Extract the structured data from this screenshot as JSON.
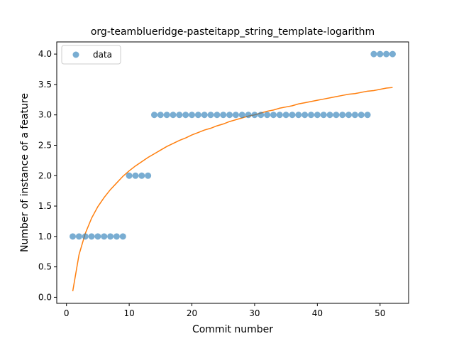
{
  "chart_data": {
    "type": "scatter",
    "title": "org-teamblueridge-pasteitapp_string_template-logarithm",
    "xlabel": "Commit number",
    "ylabel": "Number of instance of a feature",
    "xlim": [
      -1.55,
      54.55
    ],
    "ylim": [
      -0.1,
      4.2
    ],
    "xticks": [
      0,
      10,
      20,
      30,
      40,
      50
    ],
    "yticks": [
      0.0,
      0.5,
      1.0,
      1.5,
      2.0,
      2.5,
      3.0,
      3.5,
      4.0
    ],
    "ytick_labels": [
      "0.0",
      "0.5",
      "1.0",
      "1.5",
      "2.0",
      "2.5",
      "3.0",
      "3.5",
      "4.0"
    ],
    "legend": {
      "position": "top-left",
      "entries": [
        "data"
      ]
    },
    "series": [
      {
        "name": "data",
        "kind": "scatter",
        "color": "#1f77b4",
        "x": [
          1,
          2,
          3,
          4,
          5,
          6,
          7,
          8,
          9,
          10,
          11,
          12,
          13,
          14,
          15,
          16,
          17,
          18,
          19,
          20,
          21,
          22,
          23,
          24,
          25,
          26,
          27,
          28,
          29,
          30,
          31,
          32,
          33,
          34,
          35,
          36,
          37,
          38,
          39,
          40,
          41,
          42,
          43,
          44,
          45,
          46,
          47,
          48,
          49,
          50,
          51,
          52
        ],
        "y": [
          1,
          1,
          1,
          1,
          1,
          1,
          1,
          1,
          1,
          2,
          2,
          2,
          2,
          3,
          3,
          3,
          3,
          3,
          3,
          3,
          3,
          3,
          3,
          3,
          3,
          3,
          3,
          3,
          3,
          3,
          3,
          3,
          3,
          3,
          3,
          3,
          3,
          3,
          3,
          3,
          3,
          3,
          3,
          3,
          3,
          3,
          3,
          3,
          4,
          4,
          4,
          4
        ]
      },
      {
        "kind": "line",
        "color": "#ff7f0e",
        "x": [
          1,
          2,
          3,
          4,
          5,
          6,
          7,
          8,
          9,
          10,
          11,
          12,
          13,
          14,
          15,
          16,
          17,
          18,
          19,
          20,
          21,
          22,
          23,
          24,
          25,
          26,
          27,
          28,
          29,
          30,
          31,
          32,
          33,
          34,
          35,
          36,
          37,
          38,
          39,
          40,
          41,
          42,
          43,
          44,
          45,
          46,
          47,
          48,
          49,
          50,
          51,
          52
        ],
        "y": [
          0.1,
          0.7,
          1.05,
          1.3,
          1.49,
          1.64,
          1.77,
          1.88,
          1.99,
          2.08,
          2.16,
          2.23,
          2.3,
          2.36,
          2.42,
          2.48,
          2.53,
          2.58,
          2.62,
          2.67,
          2.71,
          2.75,
          2.78,
          2.82,
          2.85,
          2.89,
          2.92,
          2.95,
          2.98,
          3.0,
          3.03,
          3.06,
          3.08,
          3.11,
          3.13,
          3.15,
          3.18,
          3.2,
          3.22,
          3.24,
          3.26,
          3.28,
          3.3,
          3.32,
          3.34,
          3.35,
          3.37,
          3.39,
          3.4,
          3.42,
          3.44,
          3.45
        ]
      }
    ]
  }
}
